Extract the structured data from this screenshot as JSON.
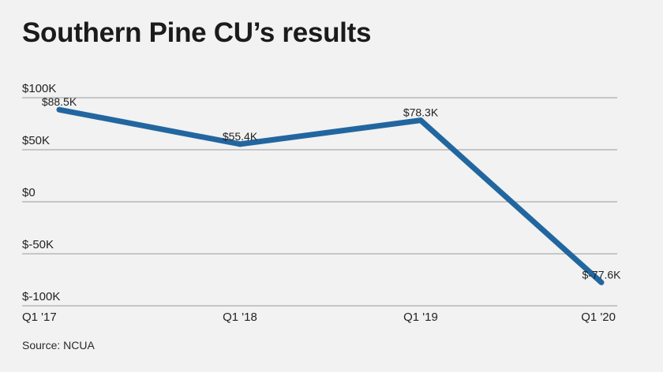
{
  "title": "Southern Pine CU’s results",
  "source": "Source: NCUA",
  "chart_data": {
    "type": "line",
    "title": "Southern Pine CU’s results",
    "categories": [
      "Q1 '17",
      "Q1 '18",
      "Q1 '19",
      "Q1 '20"
    ],
    "values": [
      88.5,
      55.4,
      78.3,
      -77.6
    ],
    "data_labels": [
      "$88.5K",
      "$55.4K",
      "$78.3K",
      "$-77.6K"
    ],
    "y_ticks": [
      100,
      50,
      0,
      -50,
      -100
    ],
    "y_tick_labels": [
      "$100K",
      "$50K",
      "$0",
      "$-50K",
      "$-100K"
    ],
    "ylim": [
      -100,
      100
    ],
    "unit": "K",
    "grid": true,
    "legend": "none",
    "colors": {
      "line": "#2266a0",
      "grid": "#9a9a9a",
      "background": "#f1f2f1"
    }
  }
}
